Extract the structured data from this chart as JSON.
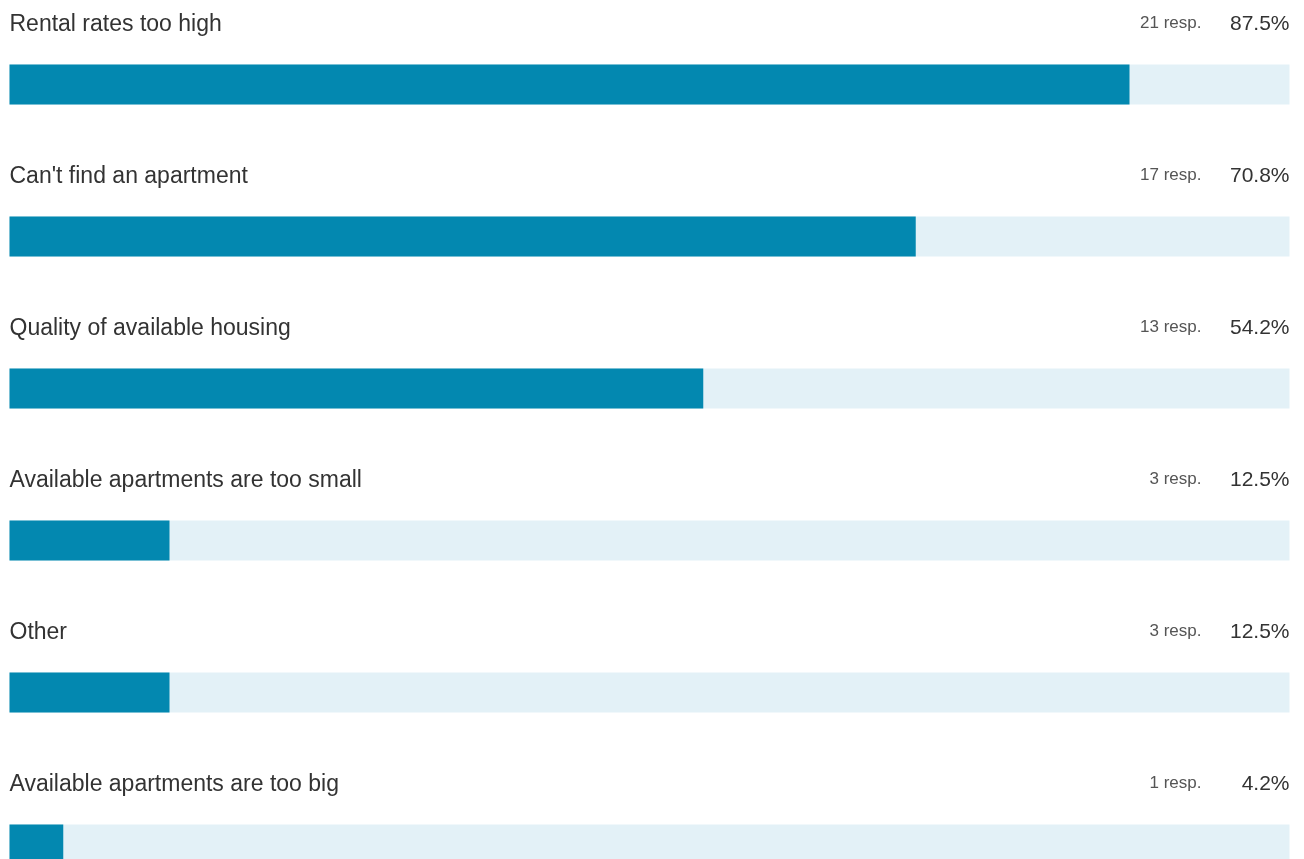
{
  "chart_data": {
    "type": "bar",
    "orientation": "horizontal",
    "categories": [
      "Rental rates too high",
      "Can't find an apartment",
      "Quality of available housing",
      "Available apartments are too small",
      "Other",
      "Available apartments are too big"
    ],
    "series": [
      {
        "color": "#0388b0",
        "values": [
          87.5,
          70.8,
          54.2,
          12.5,
          12.5,
          4.2
        ],
        "value_labels": [
          "87.5%",
          "70.8%",
          "54.2%",
          "12.5%",
          "12.5%",
          "4.2%"
        ]
      }
    ],
    "annotations": [
      "21 resp.",
      "17 resp.",
      "13 resp.",
      "3 resp.",
      "3 resp.",
      "1 resp."
    ],
    "xlim": [
      0,
      100
    ],
    "grid": false,
    "tick_labels": false
  }
}
